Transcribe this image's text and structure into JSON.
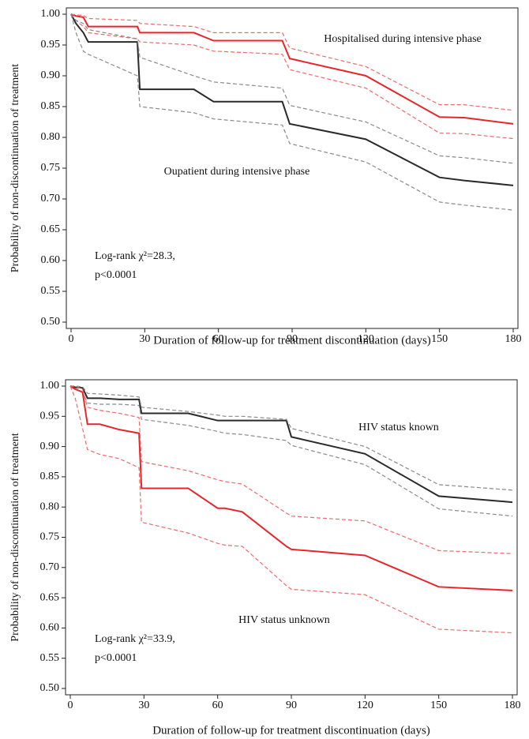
{
  "chart_data": [
    {
      "type": "line",
      "ylabel": "Probability of  non-discontinuation of treatment",
      "xlabel": "Duration of follow-up for treatment discontinuation (days)",
      "xlim": [
        0,
        180
      ],
      "xticks": [
        0,
        30,
        60,
        90,
        120,
        150,
        180
      ],
      "ylim": [
        0.5,
        1.0
      ],
      "yticks": [
        {
          "value": 0.5,
          "label": "0.50"
        },
        {
          "value": 0.55,
          "label": "0.55"
        },
        {
          "value": 0.6,
          "label": "0.60"
        },
        {
          "value": 0.65,
          "label": "0.65"
        },
        {
          "value": 0.7,
          "label": "0.70"
        },
        {
          "value": 0.75,
          "label": "0.75"
        },
        {
          "value": 0.8,
          "label": "0.80"
        },
        {
          "value": 0.85,
          "label": "0.85"
        },
        {
          "value": 0.9,
          "label": "0.90"
        },
        {
          "value": 0.95,
          "label": "0.95"
        },
        {
          "value": 1.0,
          "label": "1.00"
        }
      ],
      "x": [
        0,
        2,
        5,
        7,
        27,
        28,
        50,
        58,
        86,
        89,
        120,
        150,
        160,
        180
      ],
      "series": [
        {
          "name": "Hospitalised during intensive phase",
          "color": "#e8262a",
          "values": [
            1.0,
            0.997,
            0.995,
            0.98,
            0.98,
            0.97,
            0.97,
            0.957,
            0.957,
            0.928,
            0.9,
            0.833,
            0.832,
            0.822
          ]
        },
        {
          "color": "#f06a6a",
          "dashed": true,
          "values": [
            1.0,
            0.999,
            0.998,
            0.993,
            0.99,
            0.985,
            0.98,
            0.97,
            0.97,
            0.945,
            0.915,
            0.853,
            0.853,
            0.844
          ]
        },
        {
          "color": "#f06a6a",
          "dashed": true,
          "values": [
            1.0,
            0.99,
            0.98,
            0.97,
            0.96,
            0.955,
            0.95,
            0.94,
            0.935,
            0.91,
            0.88,
            0.807,
            0.806,
            0.798
          ]
        },
        {
          "name": "Oupatient during intensive phase",
          "color": "#2a2a2a",
          "values": [
            1.0,
            0.985,
            0.97,
            0.955,
            0.955,
            0.878,
            0.878,
            0.858,
            0.858,
            0.822,
            0.797,
            0.735,
            0.73,
            0.722
          ]
        },
        {
          "color": "#8a8a8a",
          "dashed": true,
          "values": [
            1.0,
            0.99,
            0.985,
            0.975,
            0.96,
            0.93,
            0.9,
            0.89,
            0.88,
            0.852,
            0.825,
            0.77,
            0.767,
            0.758
          ]
        },
        {
          "color": "#8a8a8a",
          "dashed": true,
          "values": [
            1.0,
            0.97,
            0.94,
            0.935,
            0.9,
            0.85,
            0.84,
            0.83,
            0.82,
            0.79,
            0.76,
            0.695,
            0.69,
            0.682
          ]
        }
      ],
      "annotations": [
        "Log-rank χ²=28.3,",
        "p<0.0001"
      ]
    },
    {
      "type": "line",
      "ylabel": "Probability of  non-discontinuation of treatment",
      "xlabel": "Duration of follow-up for treatment discontinuation (days)",
      "xlim": [
        0,
        180
      ],
      "xticks": [
        0,
        30,
        60,
        90,
        120,
        150,
        180
      ],
      "ylim": [
        0.5,
        1.0
      ],
      "yticks": [
        {
          "value": 0.5,
          "label": "0.50"
        },
        {
          "value": 0.55,
          "label": "0.55"
        },
        {
          "value": 0.6,
          "label": "0.60"
        },
        {
          "value": 0.65,
          "label": "0.65"
        },
        {
          "value": 0.7,
          "label": "0.70"
        },
        {
          "value": 0.75,
          "label": "0.75"
        },
        {
          "value": 0.8,
          "label": "0.80"
        },
        {
          "value": 0.85,
          "label": "0.85"
        },
        {
          "value": 0.9,
          "label": "0.90"
        },
        {
          "value": 0.95,
          "label": "0.95"
        },
        {
          "value": 1.0,
          "label": "1.00"
        }
      ],
      "x": [
        0,
        2,
        5,
        7,
        12,
        20,
        28,
        29,
        48,
        60,
        63,
        70,
        88,
        90,
        120,
        150,
        180
      ],
      "series": [
        {
          "name": "HIV status known",
          "color": "#2a2a2a",
          "values": [
            1.0,
            0.998,
            0.997,
            0.98,
            0.98,
            0.978,
            0.978,
            0.955,
            0.955,
            0.943,
            0.943,
            0.943,
            0.943,
            0.916,
            0.888,
            0.818,
            0.808
          ]
        },
        {
          "color": "#8a8a8a",
          "dashed": true,
          "values": [
            1.0,
            1.0,
            0.999,
            0.988,
            0.987,
            0.985,
            0.982,
            0.965,
            0.958,
            0.952,
            0.95,
            0.95,
            0.945,
            0.93,
            0.9,
            0.837,
            0.828
          ]
        },
        {
          "color": "#8a8a8a",
          "dashed": true,
          "values": [
            1.0,
            0.995,
            0.99,
            0.972,
            0.97,
            0.97,
            0.968,
            0.945,
            0.935,
            0.925,
            0.922,
            0.92,
            0.91,
            0.902,
            0.87,
            0.797,
            0.785
          ]
        },
        {
          "name": "HIV status unknown",
          "color": "#e8262a",
          "values": [
            1.0,
            0.995,
            0.99,
            0.937,
            0.937,
            0.928,
            0.922,
            0.831,
            0.831,
            0.798,
            0.798,
            0.792,
            0.735,
            0.73,
            0.72,
            0.668,
            0.662
          ]
        },
        {
          "color": "#f06a6a",
          "dashed": true,
          "values": [
            1.0,
            1.0,
            0.995,
            0.965,
            0.96,
            0.955,
            0.948,
            0.875,
            0.86,
            0.845,
            0.842,
            0.838,
            0.79,
            0.785,
            0.777,
            0.728,
            0.723
          ]
        },
        {
          "color": "#f06a6a",
          "dashed": true,
          "values": [
            1.0,
            0.98,
            0.93,
            0.895,
            0.887,
            0.88,
            0.865,
            0.775,
            0.757,
            0.74,
            0.737,
            0.735,
            0.67,
            0.664,
            0.655,
            0.598,
            0.592
          ]
        }
      ],
      "annotations": [
        "Log-rank χ²=33.9,",
        "p<0.0001"
      ]
    }
  ]
}
